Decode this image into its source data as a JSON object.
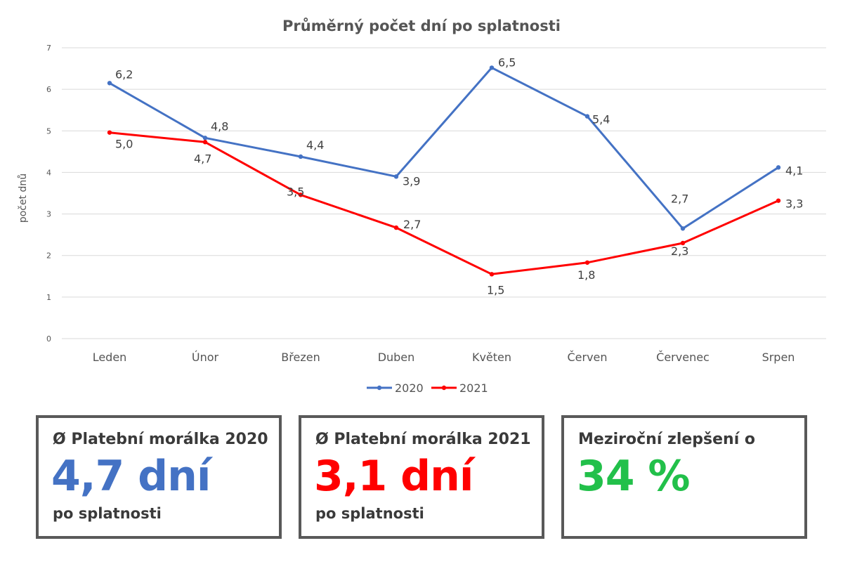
{
  "chart_data": {
    "type": "line",
    "title": "Průměrný počet dní po splatnosti",
    "ylabel": "počet dnů",
    "xlabel": "",
    "ylim": [
      0,
      7
    ],
    "yticks": [
      0,
      1,
      2,
      3,
      4,
      5,
      6,
      7
    ],
    "grid": true,
    "legend": "bottom-center",
    "categories": [
      "Leden",
      "Únor",
      "Březen",
      "Duben",
      "Květen",
      "Červen",
      "Červenec",
      "Srpen"
    ],
    "series": [
      {
        "name": "2020",
        "color": "#4472c4",
        "values": [
          6.15,
          4.83,
          4.38,
          3.9,
          6.52,
          5.35,
          2.65,
          4.12
        ],
        "labels": [
          "6,2",
          "4,8",
          "4,4",
          "3,9",
          "6,5",
          "5,4",
          "2,7",
          "4,1"
        ]
      },
      {
        "name": "2021",
        "color": "#ff0000",
        "values": [
          4.96,
          4.73,
          3.46,
          2.67,
          1.55,
          1.83,
          2.3,
          3.32
        ],
        "labels": [
          "5,0",
          "4,7",
          "3,5",
          "2,7",
          "1,5",
          "1,8",
          "2,3",
          "3,3"
        ]
      }
    ]
  },
  "cards": [
    {
      "heading": "Ø Platební morálka 2020",
      "value": "4,7 dní",
      "sub": "po splatnosti",
      "color": "#4472c4"
    },
    {
      "heading": "Ø Platební morálka 2021",
      "value": "3,1 dní",
      "sub": "po splatnosti",
      "color": "#ff0000"
    },
    {
      "heading": "Meziroční zlepšení o",
      "value": "34 %",
      "sub": "",
      "color": "#22c04a"
    }
  ]
}
